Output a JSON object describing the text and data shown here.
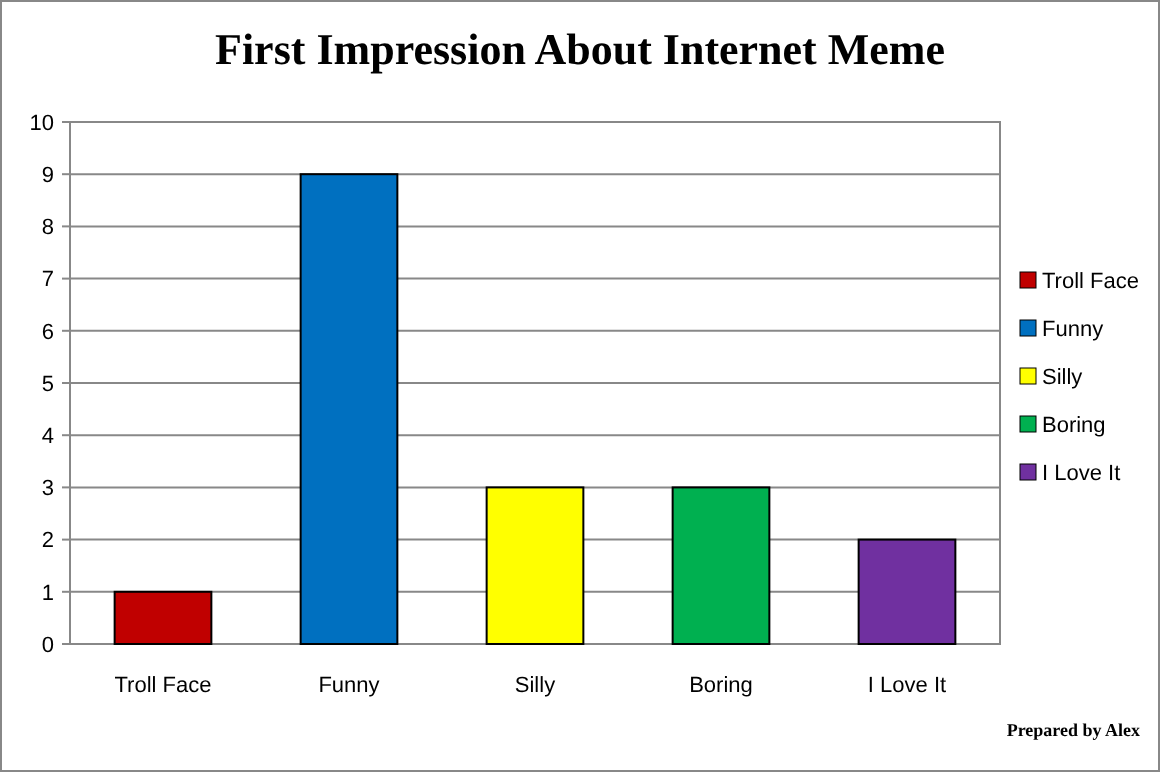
{
  "chart_data": {
    "type": "bar",
    "title": "First Impression About Internet Meme",
    "categories": [
      "Troll Face",
      "Funny",
      "Silly",
      "Boring",
      "I Love It"
    ],
    "series": [
      {
        "name": "Troll Face",
        "color": "#c00000",
        "values": [
          1,
          null,
          null,
          null,
          null
        ]
      },
      {
        "name": "Funny",
        "color": "#0070c0",
        "values": [
          null,
          9,
          null,
          null,
          null
        ]
      },
      {
        "name": "Silly",
        "color": "#ffff00",
        "values": [
          null,
          null,
          3,
          null,
          null
        ]
      },
      {
        "name": "Boring",
        "color": "#00b050",
        "values": [
          null,
          null,
          null,
          3,
          null
        ]
      },
      {
        "name": "I Love It",
        "color": "#7030a0",
        "values": [
          null,
          null,
          null,
          null,
          2
        ]
      }
    ],
    "ylim": [
      0,
      10
    ],
    "yticks": [
      0,
      1,
      2,
      3,
      4,
      5,
      6,
      7,
      8,
      9,
      10
    ],
    "grid": "y",
    "legend": "right",
    "annotations": [
      "Prepared by Alex"
    ]
  }
}
